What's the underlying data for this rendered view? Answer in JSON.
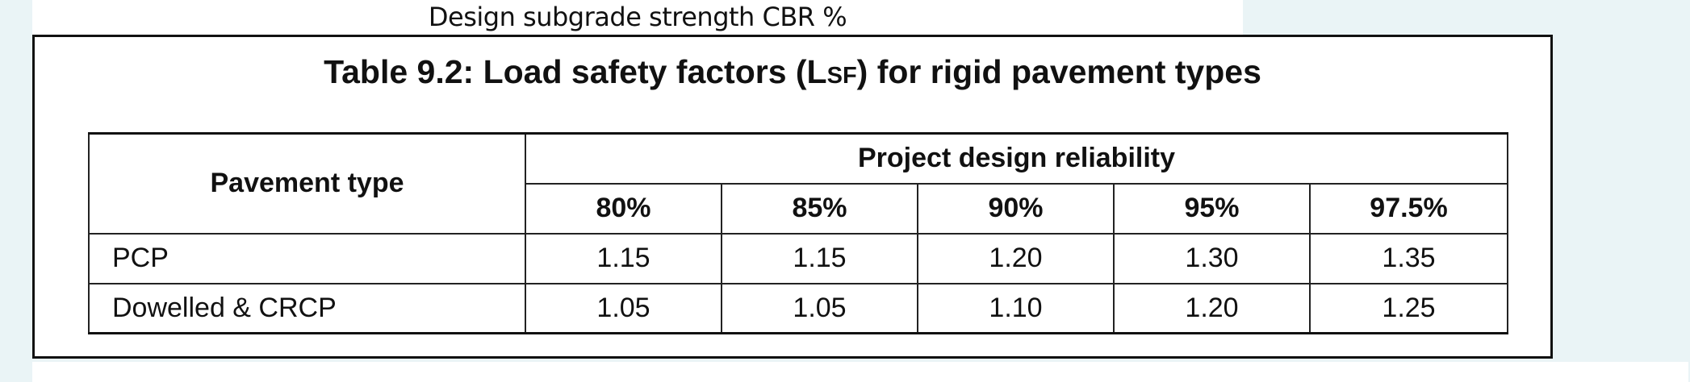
{
  "top_heading": "Design subgrade strength CBR %",
  "table": {
    "caption_prefix": "Table 9.2:  Load safety factors (L",
    "caption_subscript": "SF",
    "caption_suffix": ") for rigid pavement types",
    "row_header": "Pavement type",
    "group_header": "Project design reliability",
    "columns": [
      "80%",
      "85%",
      "90%",
      "95%",
      "97.5%"
    ],
    "rows": [
      {
        "type": "PCP",
        "values": [
          "1.15",
          "1.15",
          "1.20",
          "1.30",
          "1.35"
        ]
      },
      {
        "type": "Dowelled & CRCP",
        "values": [
          "1.05",
          "1.05",
          "1.10",
          "1.20",
          "1.25"
        ]
      }
    ]
  }
}
